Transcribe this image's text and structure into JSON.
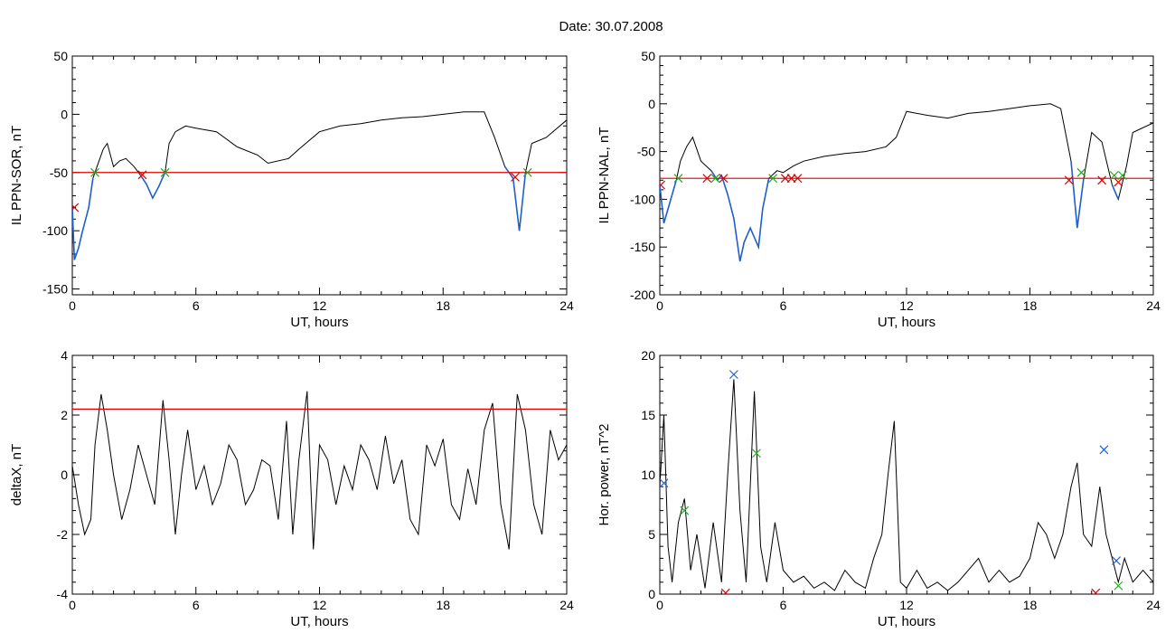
{
  "page_title": "Date:  30.07.2008",
  "colors": {
    "data_line": "#000000",
    "highlight": "#1f5fd0",
    "threshold": "#e00000",
    "marker_red": "#e00000",
    "marker_green": "#22aa22",
    "marker_blue": "#1f5fd0"
  },
  "chart_data": [
    {
      "type": "line",
      "xlabel": "UT, hours",
      "ylabel": "IL PPN-SOR, nT",
      "xlim": [
        0,
        24
      ],
      "ylim": [
        -155,
        50
      ],
      "xticks": [
        0,
        6,
        12,
        18,
        24
      ],
      "yticks": [
        -150,
        -100,
        -50,
        0,
        50
      ],
      "threshold": -50,
      "series": [
        {
          "values": [
            [
              0,
              -80
            ],
            [
              0.1,
              -125
            ],
            [
              0.3,
              -115
            ],
            [
              0.5,
              -100
            ],
            [
              0.8,
              -80
            ],
            [
              1.0,
              -55
            ],
            [
              1.2,
              -45
            ],
            [
              1.5,
              -30
            ],
            [
              1.7,
              -25
            ],
            [
              2.0,
              -45
            ],
            [
              2.3,
              -40
            ],
            [
              2.6,
              -38
            ],
            [
              3.0,
              -45
            ],
            [
              3.3,
              -52
            ],
            [
              3.6,
              -60
            ],
            [
              3.9,
              -72
            ],
            [
              4.2,
              -62
            ],
            [
              4.5,
              -50
            ],
            [
              4.7,
              -25
            ],
            [
              5.0,
              -15
            ],
            [
              5.5,
              -10
            ],
            [
              6.0,
              -12
            ],
            [
              7.0,
              -15
            ],
            [
              8.0,
              -28
            ],
            [
              9.0,
              -35
            ],
            [
              9.5,
              -42
            ],
            [
              10.5,
              -38
            ],
            [
              11.0,
              -30
            ],
            [
              12.0,
              -15
            ],
            [
              13.0,
              -10
            ],
            [
              14.0,
              -8
            ],
            [
              15.0,
              -5
            ],
            [
              16.0,
              -3
            ],
            [
              17.0,
              -2
            ],
            [
              18.0,
              0
            ],
            [
              19.0,
              2
            ],
            [
              20.0,
              2
            ],
            [
              20.5,
              -20
            ],
            [
              21.0,
              -45
            ],
            [
              21.4,
              -55
            ],
            [
              21.7,
              -100
            ],
            [
              22.0,
              -50
            ],
            [
              22.3,
              -25
            ],
            [
              23.0,
              -20
            ],
            [
              24.0,
              -5
            ]
          ]
        }
      ],
      "highlight_segments": [
        [
          0,
          1.1
        ],
        [
          3.3,
          4.5
        ],
        [
          21.0,
          22.1
        ]
      ],
      "markers": [
        {
          "x": 0.1,
          "y": -80,
          "color": "red"
        },
        {
          "x": 1.1,
          "y": -50,
          "color": "green"
        },
        {
          "x": 3.4,
          "y": -52,
          "color": "red"
        },
        {
          "x": 4.5,
          "y": -50,
          "color": "green"
        },
        {
          "x": 21.5,
          "y": -54,
          "color": "red"
        },
        {
          "x": 22.1,
          "y": -50,
          "color": "green"
        }
      ]
    },
    {
      "type": "line",
      "xlabel": "UT, hours",
      "ylabel": "IL PPN-NAL, nT",
      "xlim": [
        0,
        24
      ],
      "ylim": [
        -200,
        50
      ],
      "xticks": [
        0,
        6,
        12,
        18,
        24
      ],
      "yticks": [
        -200,
        -150,
        -100,
        -50,
        0,
        50
      ],
      "threshold": -78,
      "series": [
        {
          "values": [
            [
              0,
              -85
            ],
            [
              0.2,
              -125
            ],
            [
              0.4,
              -110
            ],
            [
              0.8,
              -80
            ],
            [
              1.0,
              -60
            ],
            [
              1.3,
              -45
            ],
            [
              1.6,
              -35
            ],
            [
              2.0,
              -60
            ],
            [
              2.5,
              -70
            ],
            [
              2.8,
              -80
            ],
            [
              3.0,
              -75
            ],
            [
              3.3,
              -95
            ],
            [
              3.6,
              -120
            ],
            [
              3.9,
              -165
            ],
            [
              4.1,
              -145
            ],
            [
              4.4,
              -130
            ],
            [
              4.8,
              -150
            ],
            [
              5.0,
              -110
            ],
            [
              5.3,
              -78
            ],
            [
              5.7,
              -70
            ],
            [
              6.0,
              -72
            ],
            [
              6.5,
              -65
            ],
            [
              7.0,
              -60
            ],
            [
              8.0,
              -55
            ],
            [
              9.0,
              -52
            ],
            [
              10.0,
              -50
            ],
            [
              11.0,
              -45
            ],
            [
              11.5,
              -35
            ],
            [
              12.0,
              -8
            ],
            [
              13.0,
              -12
            ],
            [
              14.0,
              -15
            ],
            [
              15.0,
              -10
            ],
            [
              16.0,
              -8
            ],
            [
              17.0,
              -5
            ],
            [
              18.0,
              -2
            ],
            [
              19.0,
              0
            ],
            [
              19.5,
              -5
            ],
            [
              20.0,
              -60
            ],
            [
              20.3,
              -130
            ],
            [
              20.6,
              -80
            ],
            [
              21.0,
              -30
            ],
            [
              21.5,
              -40
            ],
            [
              22.0,
              -85
            ],
            [
              22.3,
              -100
            ],
            [
              22.7,
              -65
            ],
            [
              23.0,
              -30
            ],
            [
              24.0,
              -20
            ]
          ]
        }
      ],
      "highlight_segments": [
        [
          0,
          0.9
        ],
        [
          2.5,
          5.3
        ],
        [
          19.8,
          20.6
        ],
        [
          21.8,
          22.6
        ]
      ],
      "markers": [
        {
          "x": 0.05,
          "y": -85,
          "color": "red"
        },
        {
          "x": 0.9,
          "y": -78,
          "color": "green"
        },
        {
          "x": 2.3,
          "y": -78,
          "color": "red"
        },
        {
          "x": 2.7,
          "y": -78,
          "color": "green"
        },
        {
          "x": 3.1,
          "y": -78,
          "color": "red"
        },
        {
          "x": 5.5,
          "y": -78,
          "color": "green"
        },
        {
          "x": 6.1,
          "y": -78,
          "color": "red"
        },
        {
          "x": 6.4,
          "y": -78,
          "color": "red"
        },
        {
          "x": 6.7,
          "y": -78,
          "color": "red"
        },
        {
          "x": 19.9,
          "y": -80,
          "color": "red"
        },
        {
          "x": 20.5,
          "y": -72,
          "color": "green"
        },
        {
          "x": 21.5,
          "y": -80,
          "color": "red"
        },
        {
          "x": 22.1,
          "y": -75,
          "color": "green"
        },
        {
          "x": 22.3,
          "y": -82,
          "color": "red"
        },
        {
          "x": 22.5,
          "y": -75,
          "color": "green"
        }
      ]
    },
    {
      "type": "line",
      "xlabel": "UT, hours",
      "ylabel": "deltaX, nT",
      "xlim": [
        0,
        24
      ],
      "ylim": [
        -4,
        4
      ],
      "xticks": [
        0,
        6,
        12,
        18,
        24
      ],
      "yticks": [
        -4,
        -2,
        0,
        2,
        4
      ],
      "threshold": 2.2,
      "series": [
        {
          "values": [
            [
              0,
              0.3
            ],
            [
              0.3,
              -1.0
            ],
            [
              0.6,
              -2.0
            ],
            [
              0.9,
              -1.5
            ],
            [
              1.1,
              1.0
            ],
            [
              1.4,
              2.7
            ],
            [
              1.7,
              1.5
            ],
            [
              2.0,
              0.0
            ],
            [
              2.4,
              -1.5
            ],
            [
              2.8,
              -0.5
            ],
            [
              3.2,
              1.0
            ],
            [
              3.6,
              0.0
            ],
            [
              4.0,
              -1.0
            ],
            [
              4.4,
              2.5
            ],
            [
              4.7,
              0.5
            ],
            [
              5.0,
              -2.0
            ],
            [
              5.3,
              0.0
            ],
            [
              5.6,
              1.5
            ],
            [
              6.0,
              -0.5
            ],
            [
              6.4,
              0.3
            ],
            [
              6.8,
              -1.0
            ],
            [
              7.2,
              -0.3
            ],
            [
              7.6,
              1.0
            ],
            [
              8.0,
              0.5
            ],
            [
              8.4,
              -1.0
            ],
            [
              8.8,
              -0.5
            ],
            [
              9.2,
              0.5
            ],
            [
              9.6,
              0.3
            ],
            [
              10.0,
              -1.5
            ],
            [
              10.4,
              1.8
            ],
            [
              10.7,
              -2.0
            ],
            [
              11.0,
              0.5
            ],
            [
              11.4,
              2.8
            ],
            [
              11.7,
              -2.5
            ],
            [
              12.0,
              1.0
            ],
            [
              12.4,
              0.5
            ],
            [
              12.8,
              -1.0
            ],
            [
              13.2,
              0.3
            ],
            [
              13.6,
              -0.5
            ],
            [
              14.0,
              1.0
            ],
            [
              14.4,
              0.5
            ],
            [
              14.8,
              -0.5
            ],
            [
              15.2,
              1.3
            ],
            [
              15.6,
              -0.3
            ],
            [
              16.0,
              0.5
            ],
            [
              16.4,
              -1.5
            ],
            [
              16.8,
              -2.0
            ],
            [
              17.2,
              1.0
            ],
            [
              17.6,
              0.3
            ],
            [
              18.0,
              1.2
            ],
            [
              18.4,
              -1.0
            ],
            [
              18.8,
              -1.5
            ],
            [
              19.2,
              0.2
            ],
            [
              19.6,
              -1.0
            ],
            [
              20.0,
              1.5
            ],
            [
              20.4,
              2.4
            ],
            [
              20.8,
              -1.0
            ],
            [
              21.2,
              -2.5
            ],
            [
              21.6,
              2.7
            ],
            [
              22.0,
              1.5
            ],
            [
              22.4,
              -1.0
            ],
            [
              22.8,
              -2.0
            ],
            [
              23.2,
              1.5
            ],
            [
              23.6,
              0.5
            ],
            [
              24.0,
              1.0
            ]
          ]
        }
      ]
    },
    {
      "type": "line",
      "xlabel": "UT, hours",
      "ylabel": "Hor. power, nT^2",
      "xlim": [
        0,
        24
      ],
      "ylim": [
        0,
        20
      ],
      "xticks": [
        0,
        6,
        12,
        18,
        24
      ],
      "yticks": [
        0,
        5,
        10,
        15,
        20
      ],
      "series": [
        {
          "values": [
            [
              0,
              9
            ],
            [
              0.2,
              15
            ],
            [
              0.4,
              4
            ],
            [
              0.6,
              1
            ],
            [
              0.9,
              6
            ],
            [
              1.2,
              8
            ],
            [
              1.5,
              2
            ],
            [
              1.8,
              5
            ],
            [
              2.2,
              0.5
            ],
            [
              2.6,
              6
            ],
            [
              3.0,
              1
            ],
            [
              3.3,
              10
            ],
            [
              3.6,
              18
            ],
            [
              3.9,
              7
            ],
            [
              4.2,
              1
            ],
            [
              4.6,
              17
            ],
            [
              4.9,
              4
            ],
            [
              5.2,
              1
            ],
            [
              5.6,
              6
            ],
            [
              6.0,
              2
            ],
            [
              6.5,
              1
            ],
            [
              7.0,
              1.5
            ],
            [
              7.5,
              0.5
            ],
            [
              8.0,
              1
            ],
            [
              8.5,
              0.3
            ],
            [
              9.0,
              2
            ],
            [
              9.5,
              1
            ],
            [
              10.0,
              0.5
            ],
            [
              10.4,
              3
            ],
            [
              10.8,
              5
            ],
            [
              11.1,
              10
            ],
            [
              11.4,
              14.5
            ],
            [
              11.7,
              1
            ],
            [
              12.0,
              0.5
            ],
            [
              12.5,
              2
            ],
            [
              13.0,
              0.5
            ],
            [
              13.5,
              1
            ],
            [
              14.0,
              0.3
            ],
            [
              14.5,
              1
            ],
            [
              15.0,
              2
            ],
            [
              15.5,
              3
            ],
            [
              16.0,
              1
            ],
            [
              16.5,
              2
            ],
            [
              17.0,
              1
            ],
            [
              17.5,
              1.5
            ],
            [
              18.0,
              3
            ],
            [
              18.4,
              6
            ],
            [
              18.8,
              5
            ],
            [
              19.2,
              3
            ],
            [
              19.6,
              5
            ],
            [
              20.0,
              9
            ],
            [
              20.3,
              11
            ],
            [
              20.6,
              5
            ],
            [
              21.0,
              4
            ],
            [
              21.4,
              9
            ],
            [
              21.7,
              5
            ],
            [
              22.0,
              3
            ],
            [
              22.3,
              1
            ],
            [
              22.6,
              3
            ],
            [
              23.0,
              1
            ],
            [
              23.5,
              2
            ],
            [
              24.0,
              1
            ]
          ]
        }
      ],
      "markers": [
        {
          "x": 0.2,
          "y": 9.3,
          "color": "blue"
        },
        {
          "x": 1.2,
          "y": 7.0,
          "color": "green"
        },
        {
          "x": 3.2,
          "y": 0.1,
          "color": "red"
        },
        {
          "x": 3.6,
          "y": 18.4,
          "color": "blue"
        },
        {
          "x": 4.7,
          "y": 11.8,
          "color": "green"
        },
        {
          "x": 21.2,
          "y": 0.1,
          "color": "red"
        },
        {
          "x": 21.6,
          "y": 12.1,
          "color": "blue"
        },
        {
          "x": 22.2,
          "y": 2.8,
          "color": "blue"
        },
        {
          "x": 22.3,
          "y": 0.7,
          "color": "green"
        }
      ]
    }
  ]
}
